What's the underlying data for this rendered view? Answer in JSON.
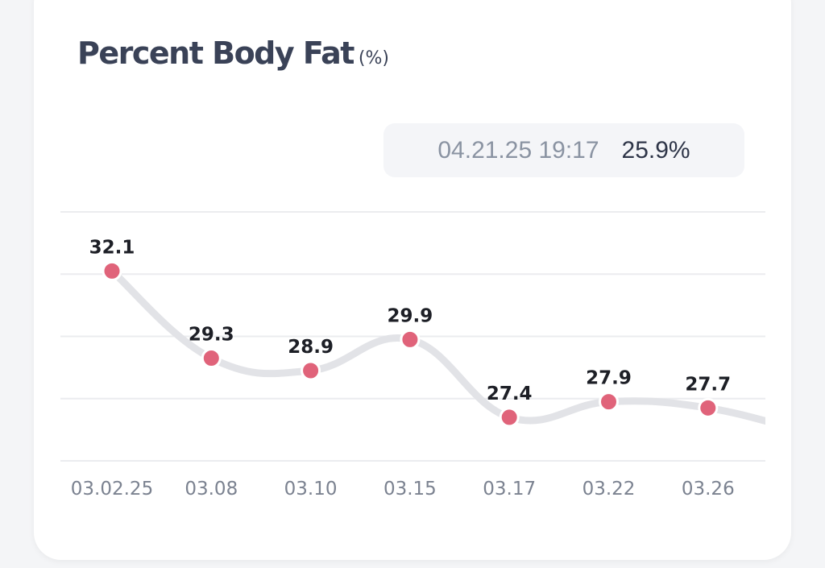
{
  "header": {
    "title": "Percent Body Fat",
    "unit": "(%)"
  },
  "tooltip": {
    "datetime": "04.21.25 19:17",
    "value": "25.9%"
  },
  "colors": {
    "point": "#e0637a",
    "line": "#e2e3e7",
    "grid": "#ebecef",
    "label": "#1d1f26",
    "tick": "#7b8290"
  },
  "chart_data": {
    "type": "line",
    "title": "Percent Body Fat (%)",
    "categories": [
      "03.02.25",
      "03.08",
      "03.10",
      "03.15",
      "03.17",
      "03.22",
      "03.26"
    ],
    "values": [
      32.1,
      29.3,
      28.9,
      29.9,
      27.4,
      27.9,
      27.7
    ],
    "labels": [
      "32.1",
      "29.3",
      "28.9",
      "29.9",
      "27.4",
      "27.9",
      "27.7"
    ],
    "trailing_value": 26.9,
    "ylim": [
      26,
      34
    ],
    "gridlines": [
      26,
      28,
      30,
      32,
      34
    ],
    "grid": true,
    "xlabel": "",
    "ylabel": ""
  }
}
